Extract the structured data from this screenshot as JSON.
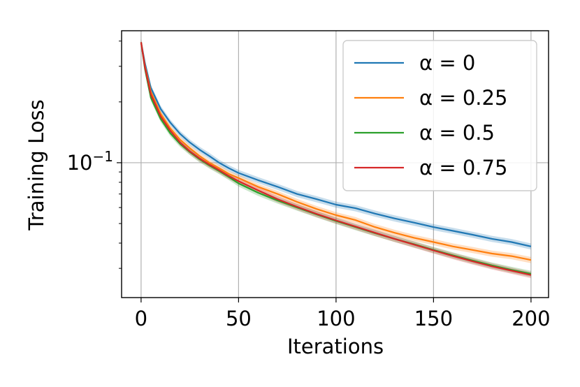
{
  "chart_data": {
    "type": "line",
    "title": "",
    "xlabel": "Iterations",
    "ylabel": "Training Loss",
    "xlim": [
      -10,
      209
    ],
    "ylim": [
      0.0215,
      0.45
    ],
    "yscale": "log",
    "grid": true,
    "legend_position": "top-right",
    "x_ticks": [
      0,
      50,
      100,
      150,
      200
    ],
    "x_tick_labels": [
      "0",
      "50",
      "100",
      "150",
      "200"
    ],
    "y_major_ticks": [
      {
        "value": 0.1,
        "base": "10",
        "exponent": "−1"
      }
    ],
    "x": [
      0,
      2,
      5,
      10,
      15,
      20,
      25,
      30,
      35,
      40,
      45,
      50,
      60,
      70,
      80,
      90,
      100,
      110,
      120,
      130,
      140,
      150,
      160,
      170,
      180,
      190,
      200
    ],
    "series": [
      {
        "name": "α = 0",
        "color": "#1f77b4",
        "values": [
          0.395,
          0.31,
          0.235,
          0.185,
          0.158,
          0.139,
          0.126,
          0.116,
          0.108,
          0.1,
          0.094,
          0.089,
          0.082,
          0.076,
          0.07,
          0.066,
          0.062,
          0.0595,
          0.056,
          0.053,
          0.0505,
          0.048,
          0.046,
          0.044,
          0.042,
          0.0405,
          0.0385
        ]
      },
      {
        "name": "α = 0.25",
        "color": "#ff7f0e",
        "values": [
          0.395,
          0.3,
          0.225,
          0.175,
          0.148,
          0.13,
          0.118,
          0.108,
          0.1,
          0.094,
          0.088,
          0.084,
          0.076,
          0.07,
          0.064,
          0.059,
          0.055,
          0.052,
          0.048,
          0.045,
          0.0425,
          0.0405,
          0.0385,
          0.037,
          0.0355,
          0.0345,
          0.033
        ]
      },
      {
        "name": "α = 0.5",
        "color": "#2ca02c",
        "values": [
          0.395,
          0.29,
          0.21,
          0.165,
          0.14,
          0.124,
          0.113,
          0.104,
          0.097,
          0.091,
          0.085,
          0.079,
          0.071,
          0.065,
          0.06,
          0.0555,
          0.0515,
          0.048,
          0.0448,
          0.042,
          0.0395,
          0.037,
          0.0348,
          0.0328,
          0.031,
          0.0295,
          0.0282
        ]
      },
      {
        "name": "α = 0.75",
        "color": "#d62728",
        "values": [
          0.395,
          0.295,
          0.218,
          0.17,
          0.144,
          0.126,
          0.114,
          0.105,
          0.098,
          0.092,
          0.086,
          0.081,
          0.073,
          0.066,
          0.0605,
          0.0558,
          0.0518,
          0.0483,
          0.045,
          0.042,
          0.0393,
          0.0368,
          0.0345,
          0.0325,
          0.0307,
          0.0292,
          0.0278
        ]
      }
    ]
  }
}
